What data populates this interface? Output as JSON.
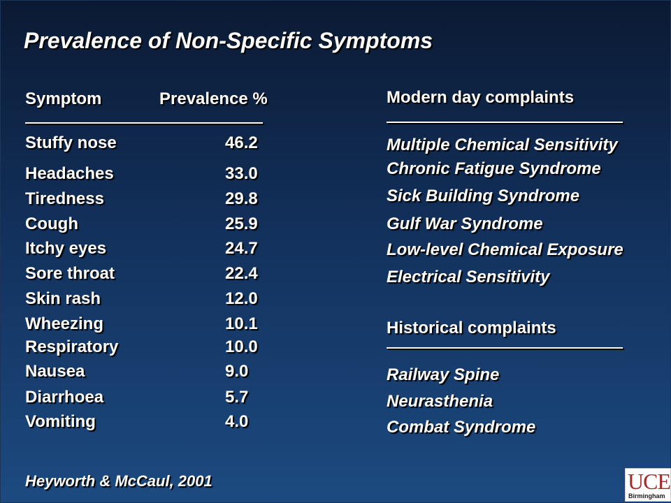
{
  "title": "Prevalence of Non-Specific Symptoms",
  "table": {
    "header_symptom": "Symptom",
    "header_prevalence": "Prevalence %",
    "rows": [
      {
        "symptom": "Stuffy nose",
        "value": "46.2"
      },
      {
        "symptom": "Headaches",
        "value": "33.0"
      },
      {
        "symptom": "Tiredness",
        "value": "29.8"
      },
      {
        "symptom": "Cough",
        "value": "25.9"
      },
      {
        "symptom": "Itchy eyes",
        "value": "24.7"
      },
      {
        "symptom": "Sore throat",
        "value": "22.4"
      },
      {
        "symptom": "Skin rash",
        "value": "12.0"
      },
      {
        "symptom": "Wheezing",
        "value": "10.1"
      },
      {
        "symptom": "Respiratory",
        "value": "10.0"
      },
      {
        "symptom": "Nausea",
        "value": "9.0"
      },
      {
        "symptom": "Diarrhoea",
        "value": "5.7"
      },
      {
        "symptom": "Vomiting",
        "value": "4.0"
      }
    ]
  },
  "modern": {
    "heading": "Modern day complaints",
    "items": [
      "Multiple Chemical Sensitivity",
      "Chronic Fatigue Syndrome",
      "Sick Building Syndrome",
      "Gulf War Syndrome",
      "Low-level Chemical Exposure",
      "Electrical Sensitivity"
    ]
  },
  "historical": {
    "heading": "Historical complaints",
    "items": [
      "Railway Spine",
      "Neurasthenia",
      "Combat Syndrome"
    ]
  },
  "citation": "Heyworth & McCaul, 2001",
  "logo": {
    "main": "UCE",
    "sub": "Birmingham"
  }
}
